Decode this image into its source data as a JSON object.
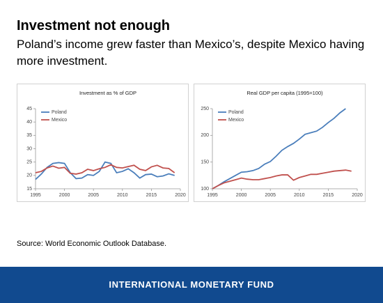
{
  "header": {
    "title": "Investment not enough",
    "subtitle": "Poland’s income grew faster than Mexico’s, despite Mexico having more investment."
  },
  "chart_data": [
    {
      "type": "line",
      "title": "Investment as % of GDP",
      "x": [
        1995,
        1996,
        1997,
        1998,
        1999,
        2000,
        2001,
        2002,
        2003,
        2004,
        2005,
        2006,
        2007,
        2008,
        2009,
        2010,
        2011,
        2012,
        2013,
        2014,
        2015,
        2016,
        2017,
        2018,
        2019
      ],
      "series": [
        {
          "name": "Poland",
          "color": "#4a7ebb",
          "values": [
            18.5,
            20.5,
            23,
            24.5,
            24.8,
            24.5,
            21,
            18.8,
            19,
            20.3,
            20,
            21.5,
            25,
            24.5,
            21,
            21.5,
            22.5,
            21,
            19,
            20.3,
            20.5,
            19.5,
            19.8,
            20.6,
            20
          ]
        },
        {
          "name": "Mexico",
          "color": "#c0504d",
          "values": [
            21,
            21.5,
            22.8,
            23.5,
            22.7,
            23,
            20.8,
            20.5,
            21,
            22.3,
            21.8,
            22.5,
            23,
            24,
            23,
            22.8,
            23.3,
            23.8,
            22.3,
            21.8,
            23.2,
            23.8,
            22.8,
            22.6,
            21
          ]
        }
      ],
      "xlim": [
        1995,
        2020
      ],
      "xticks": [
        1995,
        2000,
        2005,
        2010,
        2015,
        2020
      ],
      "ylim": [
        15,
        45
      ],
      "yticks": [
        15,
        20,
        25,
        30,
        35,
        40,
        45
      ],
      "legend": "upper left"
    },
    {
      "type": "line",
      "title": "Real GDP per capita (1995=100)",
      "x": [
        1995,
        1996,
        1997,
        1998,
        1999,
        2000,
        2001,
        2002,
        2003,
        2004,
        2005,
        2006,
        2007,
        2008,
        2009,
        2010,
        2011,
        2012,
        2013,
        2014,
        2015,
        2016,
        2017,
        2018,
        2019
      ],
      "series": [
        {
          "name": "Poland",
          "color": "#4a7ebb",
          "values": [
            100,
            106,
            113,
            119,
            125,
            131,
            132,
            134,
            138,
            146,
            151,
            161,
            172,
            179,
            185,
            193,
            202,
            205,
            208,
            215,
            224,
            232,
            242,
            250,
            null
          ]
        },
        {
          "name": "Mexico",
          "color": "#c0504d",
          "values": [
            100,
            106,
            111,
            114,
            117,
            120,
            118,
            117,
            117,
            119,
            121,
            124,
            126,
            126,
            116,
            121,
            124,
            127,
            127,
            129,
            131,
            133,
            134,
            135,
            133
          ]
        }
      ],
      "xlim": [
        1995,
        2020
      ],
      "xticks": [
        1995,
        2000,
        2005,
        2010,
        2015,
        2020
      ],
      "ylim": [
        100,
        250
      ],
      "yticks": [
        100,
        150,
        200,
        250
      ],
      "legend": "upper left"
    }
  ],
  "source": "Source: World Economic Outlook Database.",
  "footer": "INTERNATIONAL MONETARY FUND"
}
